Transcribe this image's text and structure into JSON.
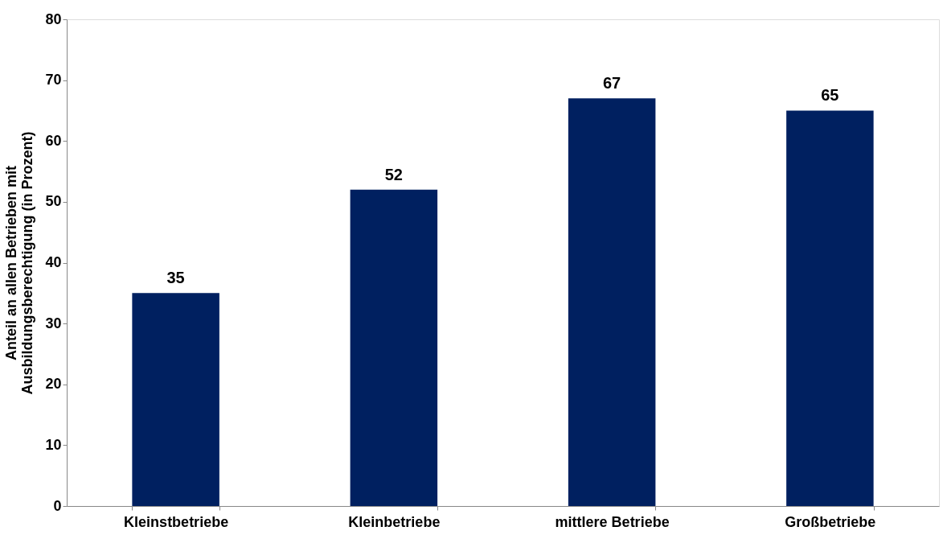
{
  "chart_data": {
    "type": "bar",
    "categories": [
      "Kleinstbetriebe",
      "Kleinbetriebe",
      "mittlere Betriebe",
      "Großbetriebe"
    ],
    "values": [
      35,
      52,
      67,
      65
    ],
    "color": "#002060",
    "ylabel": "Anteil an allen Betrieben mit\nAusbildungsberechtigung (in Prozent)",
    "ylim": [
      0,
      80
    ],
    "yticks": [
      0,
      10,
      20,
      30,
      40,
      50,
      60,
      70,
      80
    ],
    "grid": false,
    "data_labels": true
  }
}
